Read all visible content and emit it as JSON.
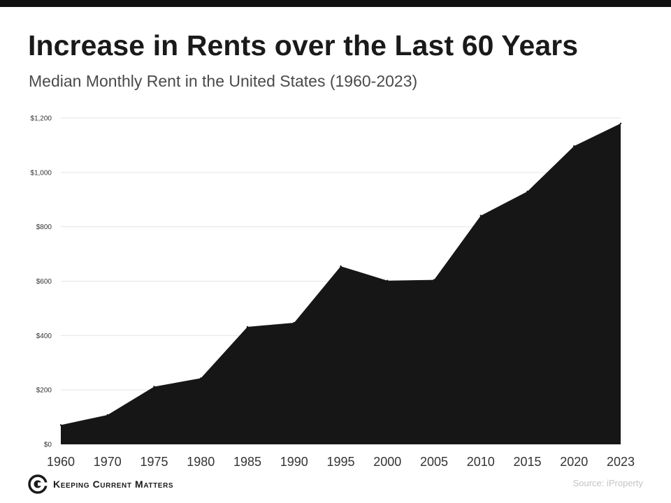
{
  "header": {
    "title": "Increase in Rents over the Last 60 Years",
    "subtitle": "Median Monthly Rent in the United States (1960-2023)"
  },
  "footer": {
    "brand": "Keeping Current Matters",
    "source": "Source: iProperty"
  },
  "colors": {
    "area": "#161616",
    "grid": "#e3e3e3",
    "tick_text": "#333333"
  },
  "chart_data": {
    "type": "area",
    "title": "Increase in Rents over the Last 60 Years",
    "subtitle": "Median Monthly Rent in the United States (1960-2023)",
    "xlabel": "",
    "ylabel": "",
    "x": [
      "1960",
      "1970",
      "1975",
      "1980",
      "1985",
      "1990",
      "1995",
      "2000",
      "2005",
      "2010",
      "2015",
      "2020",
      "2023"
    ],
    "series": [
      {
        "values": [
          71,
          108,
          212,
          243,
          432,
          447,
          655,
          602,
          605,
          841,
          930,
          1097,
          1180
        ]
      }
    ],
    "ylim": [
      0,
      1200
    ],
    "yticks": [
      0,
      200,
      400,
      600,
      800,
      1000,
      1200
    ],
    "ytick_labels": [
      "$0",
      "$200",
      "$400",
      "$600",
      "$800",
      "$1,000",
      "$1,200"
    ],
    "grid": true,
    "legend": "none"
  }
}
